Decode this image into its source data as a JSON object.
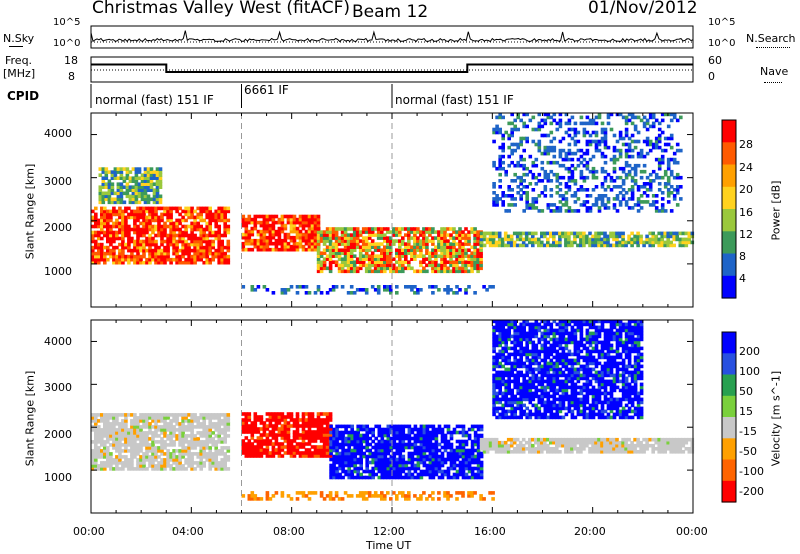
{
  "header": {
    "title": "Christmas Valley West (fitACF)",
    "beam": "Beam 12",
    "date": "01/Nov/2012"
  },
  "noise_panel": {
    "left_label": "N.Sky",
    "right_label": "N.Search",
    "left_ticks": [
      "10^5",
      "10^0"
    ],
    "right_ticks": [
      "10^5",
      "10^0"
    ]
  },
  "freq_panel": {
    "left_label_1": "Freq.",
    "left_label_2": "[MHz]",
    "right_label": "Nave",
    "left_ticks": [
      "18",
      "8"
    ],
    "right_ticks": [
      "60",
      "0"
    ],
    "freq_segments": [
      {
        "start_h": 0,
        "end_h": 3.0,
        "freq": 15.0
      },
      {
        "start_h": 3.0,
        "end_h": 15.0,
        "freq": 12.0
      },
      {
        "start_h": 15.0,
        "end_h": 24.0,
        "freq": 15.0
      }
    ]
  },
  "cpid_panel": {
    "label": "CPID",
    "segments": [
      {
        "start_h": 0,
        "end_h": 6.0,
        "text": "normal (fast) 151 IF"
      },
      {
        "start_h": 6.0,
        "end_h": 12.0,
        "text": "6661 IF"
      },
      {
        "start_h": 12.0,
        "end_h": 24.0,
        "text": "normal (fast) 151 IF"
      }
    ]
  },
  "power_panel": {
    "ylabel": "Slant Range [km]",
    "yticks": [
      "4000",
      "3000",
      "2000",
      "1000"
    ],
    "colorbar_label": "Power [dB]",
    "colorbar_ticks": [
      "28",
      "24",
      "20",
      "16",
      "12",
      "8",
      "4"
    ],
    "colors": [
      "#ff0000",
      "#ff5a00",
      "#ffa000",
      "#ffd21e",
      "#9ac83c",
      "#3c9a5a",
      "#1e64c8",
      "#0000ff"
    ]
  },
  "velocity_panel": {
    "ylabel": "Slant Range [km]",
    "yticks": [
      "4000",
      "3000",
      "2000",
      "1000"
    ],
    "colorbar_label": "Velocity [m s^-1]",
    "colorbar_ticks": [
      "200",
      "100",
      "50",
      "15",
      "-15",
      "-50",
      "-100",
      "-200"
    ],
    "colors": [
      "#0000ff",
      "#2850e0",
      "#28a050",
      "#7ad03c",
      "#c8c8c8",
      "#ffa000",
      "#ff6400",
      "#ff0000"
    ]
  },
  "x_axis": {
    "ticks": [
      "00:00",
      "04:00",
      "08:00",
      "12:00",
      "16:00",
      "20:00",
      "00:00"
    ],
    "label": "Time UT"
  },
  "chart_data": {
    "type": "heatmap",
    "x_range_hours": [
      0,
      24
    ],
    "y_range_km": [
      0,
      4500
    ],
    "title": "Christmas Valley West (fitACF)",
    "xlabel": "Time UT",
    "ylabel": "Slant Range [km]",
    "power_regions": [
      {
        "t0": 0.0,
        "t1": 5.5,
        "r0": 1000,
        "r1": 2300,
        "level": "high"
      },
      {
        "t0": 0.3,
        "t1": 2.8,
        "r0": 2400,
        "r1": 3200,
        "level": "mid"
      },
      {
        "t0": 6.0,
        "t1": 9.0,
        "r0": 1300,
        "r1": 2100,
        "level": "high"
      },
      {
        "t0": 9.0,
        "t1": 15.5,
        "r0": 800,
        "r1": 1800,
        "level": "mid-high"
      },
      {
        "t0": 15.5,
        "t1": 24.0,
        "r0": 1400,
        "r1": 1700,
        "level": "mid"
      },
      {
        "t0": 16.0,
        "t1": 23.5,
        "r0": 2200,
        "r1": 4500,
        "level": "low"
      },
      {
        "t0": 6.0,
        "t1": 16.0,
        "r0": 300,
        "r1": 500,
        "level": "low"
      }
    ],
    "velocity_regions": [
      {
        "t0": 0.0,
        "t1": 5.5,
        "r0": 1000,
        "r1": 2300,
        "value": 0
      },
      {
        "t0": 6.0,
        "t1": 9.5,
        "r0": 1300,
        "r1": 2300,
        "value": -200
      },
      {
        "t0": 9.5,
        "t1": 15.5,
        "r0": 800,
        "r1": 2000,
        "value": 200
      },
      {
        "t0": 15.5,
        "t1": 24.0,
        "r0": 1400,
        "r1": 1700,
        "value": 0
      },
      {
        "t0": 16.0,
        "t1": 22.0,
        "r0": 2200,
        "r1": 4500,
        "value": 200
      },
      {
        "t0": 6.0,
        "t1": 16.0,
        "r0": 300,
        "r1": 500,
        "value": -50
      }
    ]
  }
}
